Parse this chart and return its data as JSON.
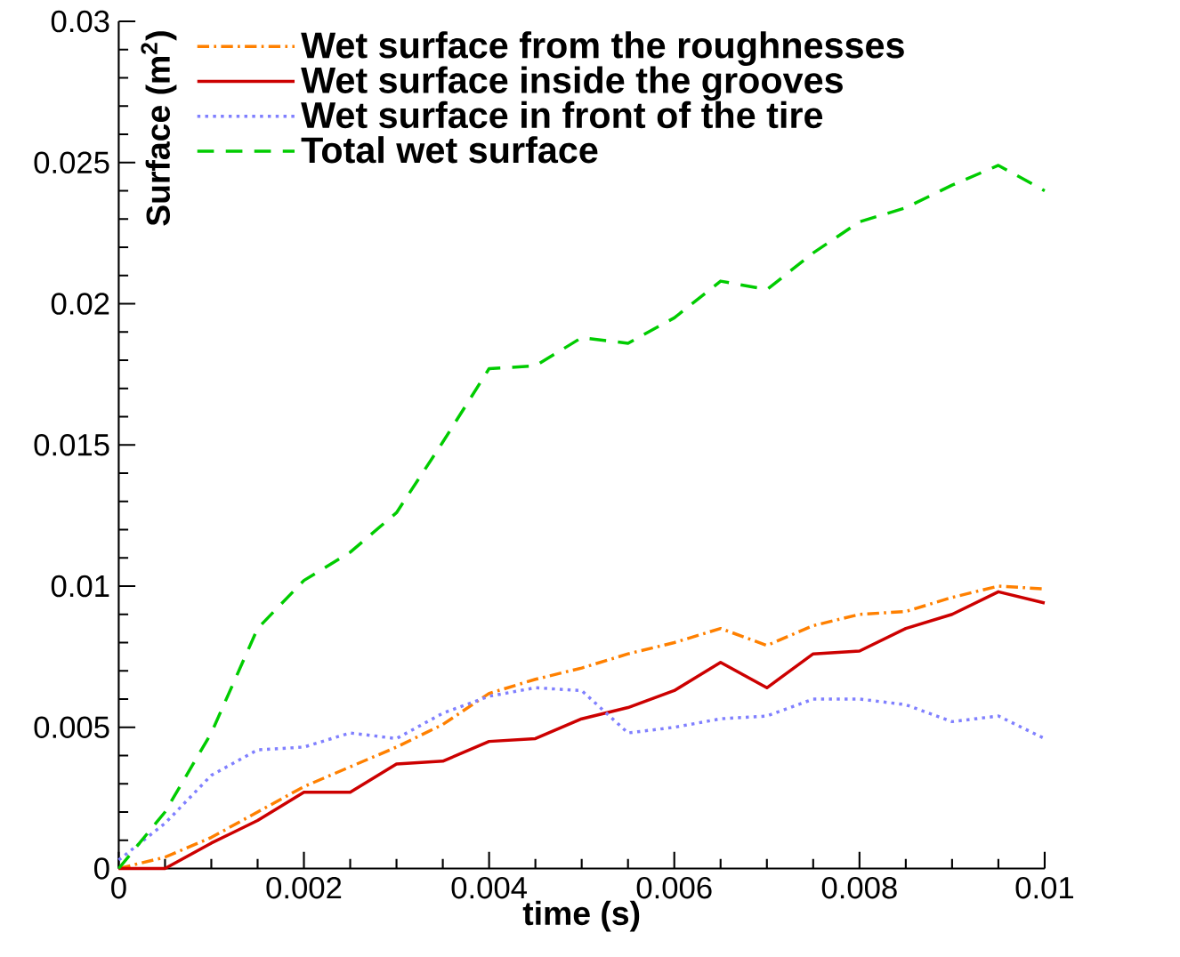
{
  "chart_data": {
    "type": "line",
    "xlabel": "time (s)",
    "ylabel": "Surface (m$^{2}$)",
    "x": [
      0,
      0.0005,
      0.001,
      0.0015,
      0.002,
      0.0025,
      0.003,
      0.0035,
      0.004,
      0.0045,
      0.005,
      0.0055,
      0.006,
      0.0065,
      0.007,
      0.0075,
      0.008,
      0.0085,
      0.009,
      0.0095,
      0.01
    ],
    "series": [
      {
        "name": "Wet surface from the roughnesses",
        "color": "#ff8000",
        "line_style": "dashdot",
        "values": [
          0,
          0.0004,
          0.0011,
          0.002,
          0.0029,
          0.0036,
          0.0043,
          0.0051,
          0.0062,
          0.0067,
          0.0071,
          0.0076,
          0.008,
          0.0085,
          0.0079,
          0.0086,
          0.009,
          0.0091,
          0.0096,
          0.01,
          0.0099
        ]
      },
      {
        "name": "Wet surface inside the grooves",
        "color": "#cc0000",
        "line_style": "solid",
        "values": [
          0,
          0,
          0.0009,
          0.0017,
          0.0027,
          0.0027,
          0.0037,
          0.0038,
          0.0045,
          0.0046,
          0.0053,
          0.0057,
          0.0063,
          0.0073,
          0.0064,
          0.0076,
          0.0077,
          0.0085,
          0.009,
          0.0098,
          0.0094
        ]
      },
      {
        "name": "Wet surface in front of the tire",
        "color": "#8080ff",
        "line_style": "dotted",
        "values": [
          0.0003,
          0.0016,
          0.0033,
          0.0042,
          0.0043,
          0.0048,
          0.0046,
          0.0055,
          0.0061,
          0.0064,
          0.0063,
          0.0048,
          0.005,
          0.0053,
          0.0054,
          0.006,
          0.006,
          0.0058,
          0.0052,
          0.0054,
          0.0046
        ]
      },
      {
        "name": "Total wet surface",
        "color": "#00cc00",
        "line_style": "dashed",
        "values": [
          0,
          0.002,
          0.0048,
          0.0085,
          0.0102,
          0.0112,
          0.0126,
          0.0151,
          0.0177,
          0.0178,
          0.0188,
          0.0186,
          0.0195,
          0.0208,
          0.0205,
          0.0218,
          0.0229,
          0.0234,
          0.0242,
          0.0249,
          0.024
        ]
      }
    ],
    "xlim": [
      0,
      0.01
    ],
    "xticks": [
      0,
      0.002,
      0.004,
      0.006,
      0.008,
      0.01
    ],
    "ylim": [
      0,
      0.03
    ],
    "yticks": [
      0,
      0.005,
      0.01,
      0.015,
      0.02,
      0.025,
      0.03
    ],
    "legend": "top left",
    "grid": false
  }
}
